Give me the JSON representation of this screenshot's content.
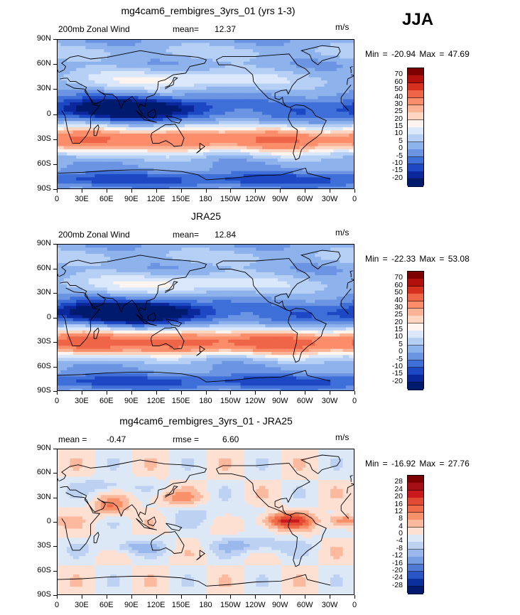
{
  "season": "JJA",
  "units": "m/s",
  "x_ticks": [
    "0",
    "30E",
    "60E",
    "90E",
    "120E",
    "150E",
    "180",
    "150W",
    "120W",
    "90W",
    "60W",
    "30W",
    "0"
  ],
  "y_ticks": [
    "90N",
    "60N",
    "30N",
    "0",
    "30S",
    "60S",
    "90S"
  ],
  "panels": [
    {
      "title": "mg4cam6_rembigres_3yrs_01 (yrs 1-3)",
      "left_label": "200mb Zonal Wind",
      "stat1_label": "mean=",
      "stat1_value": "12.37",
      "stat2_label": "",
      "stat2_value": "",
      "units": "m/s",
      "minmax": "Min = -20.94 Max = 47.69",
      "levels": [
        "70",
        "60",
        "50",
        "40",
        "30",
        "25",
        "20",
        "15",
        "10",
        "5",
        "0",
        "-5",
        "-10",
        "-15",
        "-20"
      ],
      "colors": [
        "#7f0000",
        "#b2100c",
        "#d7301f",
        "#ef6548",
        "#fc8d6b",
        "#fcb295",
        "#fdd5c0",
        "#fff5ee",
        "#dbe8fb",
        "#b5cff5",
        "#8db2ec",
        "#6b94e2",
        "#3f6fd8",
        "#1c48c4",
        "#0a289c",
        "#001a6e"
      ],
      "field": "wind_model"
    },
    {
      "title": "JRA25",
      "left_label": "200mb Zonal Wind",
      "stat1_label": "mean=",
      "stat1_value": "12.84",
      "stat2_label": "",
      "stat2_value": "",
      "units": "m/s",
      "minmax": "Min = -22.33 Max = 53.08",
      "levels": [
        "70",
        "60",
        "50",
        "40",
        "30",
        "25",
        "20",
        "15",
        "10",
        "5",
        "0",
        "-5",
        "-10",
        "-15",
        "-20"
      ],
      "colors": [
        "#7f0000",
        "#b2100c",
        "#d7301f",
        "#ef6548",
        "#fc8d6b",
        "#fcb295",
        "#fdd5c0",
        "#fff5ee",
        "#dbe8fb",
        "#b5cff5",
        "#8db2ec",
        "#6b94e2",
        "#3f6fd8",
        "#1c48c4",
        "#0a289c",
        "#001a6e"
      ],
      "field": "wind_obs"
    },
    {
      "title": "mg4cam6_rembigres_3yrs_01 - JRA25",
      "left_label": "",
      "stat1_label": "mean =",
      "stat1_value": "-0.47",
      "stat2_label": "rmse =",
      "stat2_value": "6.60",
      "units": "m/s",
      "minmax": "Min = -16.92 Max = 27.76",
      "levels": [
        "28",
        "24",
        "20",
        "16",
        "12",
        "8",
        "4",
        "0",
        "-4",
        "-8",
        "-12",
        "-16",
        "-20",
        "-24",
        "-28"
      ],
      "colors": [
        "#7f0000",
        "#a50f15",
        "#cb181d",
        "#e34a33",
        "#f06b4a",
        "#f8916a",
        "#fcb99e",
        "#fde0d2",
        "#dde8f7",
        "#bdd1f2",
        "#9bb8ec",
        "#779de3",
        "#4f7ad6",
        "#2a55c6",
        "#0c2f9e",
        "#001a6e"
      ],
      "field": "diff"
    }
  ]
}
